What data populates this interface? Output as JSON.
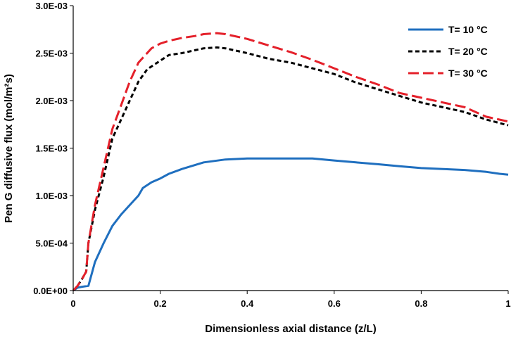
{
  "chart_data": {
    "type": "line",
    "xlabel": "Dimensionless axial distance (z/L)",
    "ylabel": "Pen G diffusive flux (mol/m²s)",
    "xlim": [
      0,
      1
    ],
    "ylim": [
      0,
      0.003
    ],
    "x_ticks": [
      0,
      0.2,
      0.4,
      0.6,
      0.8,
      1
    ],
    "x_tick_labels": [
      "0",
      "0.2",
      "0.4",
      "0.6",
      "0.8",
      "1"
    ],
    "y_ticks": [
      0,
      0.0005,
      0.001,
      0.0015,
      0.002,
      0.0025,
      0.003
    ],
    "y_tick_labels": [
      "0.0E+00",
      "5.0E-04",
      "1.0E-03",
      "1.5E-03",
      "2.0E-03",
      "2.5E-03",
      "3.0E-03"
    ],
    "grid": false,
    "legend_position": "top-right",
    "series": [
      {
        "name": "T= 10 °C",
        "color": "#1f6fbf",
        "dash": "solid",
        "x": [
          0,
          0.01,
          0.02,
          0.035,
          0.05,
          0.07,
          0.09,
          0.11,
          0.13,
          0.15,
          0.16,
          0.18,
          0.2,
          0.22,
          0.25,
          0.3,
          0.35,
          0.4,
          0.45,
          0.5,
          0.55,
          0.6,
          0.65,
          0.7,
          0.75,
          0.8,
          0.85,
          0.9,
          0.95,
          0.98,
          1
        ],
        "y": [
          0,
          3e-05,
          4e-05,
          5e-05,
          0.0003,
          0.0005,
          0.00068,
          0.0008,
          0.0009,
          0.001,
          0.00108,
          0.00114,
          0.00118,
          0.00123,
          0.00128,
          0.00135,
          0.00138,
          0.00139,
          0.00139,
          0.00139,
          0.00139,
          0.00137,
          0.00135,
          0.00133,
          0.00131,
          0.00129,
          0.00128,
          0.00127,
          0.00125,
          0.00123,
          0.00122
        ]
      },
      {
        "name": "T= 20 °C",
        "color": "#000000",
        "dash": "dashed",
        "x": [
          0,
          0.01,
          0.02,
          0.03,
          0.035,
          0.05,
          0.07,
          0.09,
          0.11,
          0.13,
          0.15,
          0.17,
          0.2,
          0.22,
          0.25,
          0.28,
          0.3,
          0.33,
          0.35,
          0.4,
          0.45,
          0.5,
          0.55,
          0.6,
          0.65,
          0.7,
          0.75,
          0.8,
          0.85,
          0.9,
          0.95,
          1
        ],
        "y": [
          0,
          5e-05,
          0.00012,
          0.0002,
          0.0005,
          0.00085,
          0.0012,
          0.0016,
          0.0018,
          0.002,
          0.0022,
          0.00233,
          0.00242,
          0.00248,
          0.0025,
          0.00253,
          0.00255,
          0.00256,
          0.00255,
          0.0025,
          0.00244,
          0.0024,
          0.00234,
          0.00228,
          0.00219,
          0.00212,
          0.00205,
          0.00198,
          0.00193,
          0.00188,
          0.0018,
          0.00174
        ]
      },
      {
        "name": "T= 30 °C",
        "color": "#e4202a",
        "dash": "longdash",
        "x": [
          0,
          0.01,
          0.02,
          0.03,
          0.035,
          0.05,
          0.07,
          0.09,
          0.11,
          0.13,
          0.15,
          0.18,
          0.2,
          0.22,
          0.25,
          0.28,
          0.3,
          0.33,
          0.35,
          0.4,
          0.45,
          0.5,
          0.55,
          0.6,
          0.65,
          0.7,
          0.75,
          0.8,
          0.85,
          0.9,
          0.95,
          1
        ],
        "y": [
          0,
          5e-05,
          0.00012,
          0.0002,
          0.0005,
          0.0009,
          0.0013,
          0.0017,
          0.00195,
          0.0022,
          0.0024,
          0.00255,
          0.0026,
          0.00263,
          0.00266,
          0.00268,
          0.0027,
          0.00271,
          0.0027,
          0.00265,
          0.00258,
          0.00251,
          0.00243,
          0.00234,
          0.00225,
          0.00217,
          0.00208,
          0.00203,
          0.00198,
          0.00193,
          0.00183,
          0.00178
        ]
      }
    ]
  }
}
